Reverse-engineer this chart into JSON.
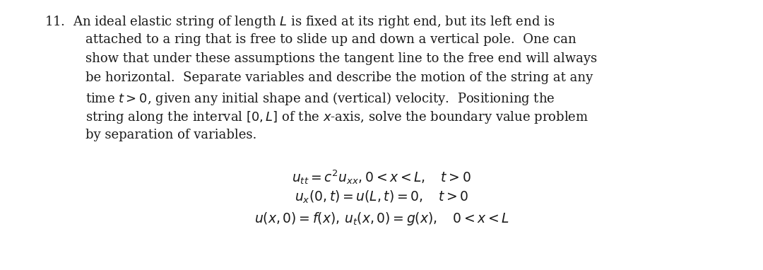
{
  "background_color": "#ffffff",
  "figsize": [
    10.8,
    3.82
  ],
  "dpi": 100,
  "text_color": "#1a1a1a",
  "font_size_body": 13.5,
  "font_size_eq": 13.5,
  "lines": [
    [
      "0.058",
      "0.962",
      "left",
      "11.  An ideal elastic string of length $L$ is fixed at its right end, but its left end is"
    ],
    [
      "0.112",
      "0.831",
      "left",
      "attached to a ring that is free to slide up and down a vertical pole.  One can"
    ],
    [
      "0.112",
      "0.700",
      "left",
      "show that under these assumptions the tangent line to the free end will always"
    ],
    [
      "0.112",
      "0.569",
      "left",
      "be horizontal.  Separate variables and describe the motion of the string at any"
    ],
    [
      "0.112",
      "0.438",
      "left",
      "time $t > 0$, given any initial shape and (vertical) velocity.  Positioning the"
    ],
    [
      "0.112",
      "0.307",
      "left",
      "string along the interval $[0, L]$ of the $x$-axis, solve the boundary value problem"
    ],
    [
      "0.112",
      "0.176",
      "left",
      "by separation of variables."
    ]
  ],
  "equations": [
    [
      "0.5",
      "0.135",
      "center",
      "$u_{tt} = c^2u_{xx}, 0 < x < L, \\quad t > 0$"
    ],
    [
      "0.5",
      "0.058",
      "center",
      "$u_x(0,t) = u(L,t) = 0, \\quad t > 0$"
    ],
    [
      "0.5",
      "-0.019",
      "center",
      "$u(x,0) = f(x),\\, u_t(x,0) = g(x), \\quad 0 < x < L$"
    ]
  ]
}
